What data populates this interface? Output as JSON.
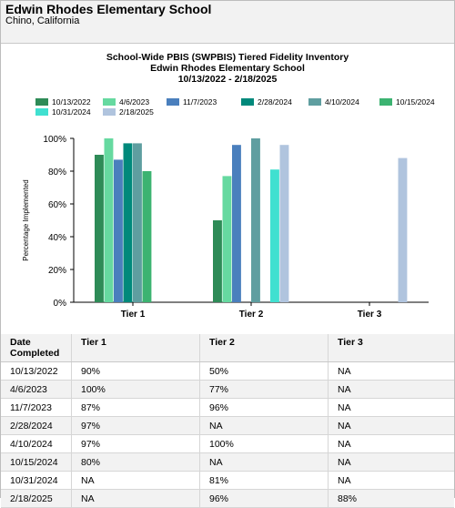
{
  "header": {
    "school_name": "Edwin Rhodes Elementary School",
    "location": "Chino, California"
  },
  "chart_data": {
    "type": "bar",
    "title_lines": [
      "School-Wide PBIS (SWPBIS) Tiered Fidelity Inventory",
      "Edwin Rhodes Elementary School",
      "10/13/2022 - 2/18/2025"
    ],
    "xlabel": "",
    "ylabel": "Percentage Implemented",
    "categories": [
      "Tier 1",
      "Tier 2",
      "Tier 3"
    ],
    "ylim": [
      0,
      100
    ],
    "yticks": [
      "0%",
      "20%",
      "40%",
      "60%",
      "80%",
      "100%"
    ],
    "legend_position": "top",
    "series": [
      {
        "name": "10/13/2022",
        "color": "#2e8b57",
        "values": [
          90,
          50,
          null
        ]
      },
      {
        "name": "4/6/2023",
        "color": "#66d9a0",
        "values": [
          100,
          77,
          null
        ]
      },
      {
        "name": "11/7/2023",
        "color": "#4a7fbd",
        "values": [
          87,
          96,
          null
        ]
      },
      {
        "name": "2/28/2024",
        "color": "#00897b",
        "values": [
          97,
          null,
          null
        ]
      },
      {
        "name": "4/10/2024",
        "color": "#5f9ea0",
        "values": [
          97,
          100,
          null
        ]
      },
      {
        "name": "10/15/2024",
        "color": "#3cb371",
        "values": [
          80,
          null,
          null
        ]
      },
      {
        "name": "10/31/2024",
        "color": "#40e0d0",
        "values": [
          null,
          81,
          null
        ]
      },
      {
        "name": "2/18/2025",
        "color": "#b0c4de",
        "values": [
          null,
          96,
          88
        ]
      }
    ]
  },
  "table": {
    "headers": [
      "Date Completed",
      "Tier 1",
      "Tier 2",
      "Tier 3"
    ],
    "rows": [
      [
        "10/13/2022",
        "90%",
        "50%",
        "NA"
      ],
      [
        "4/6/2023",
        "100%",
        "77%",
        "NA"
      ],
      [
        "11/7/2023",
        "87%",
        "96%",
        "NA"
      ],
      [
        "2/28/2024",
        "97%",
        "NA",
        "NA"
      ],
      [
        "4/10/2024",
        "97%",
        "100%",
        "NA"
      ],
      [
        "10/15/2024",
        "80%",
        "NA",
        "NA"
      ],
      [
        "10/31/2024",
        "NA",
        "81%",
        "NA"
      ],
      [
        "2/18/2025",
        "NA",
        "96%",
        "88%"
      ]
    ]
  }
}
